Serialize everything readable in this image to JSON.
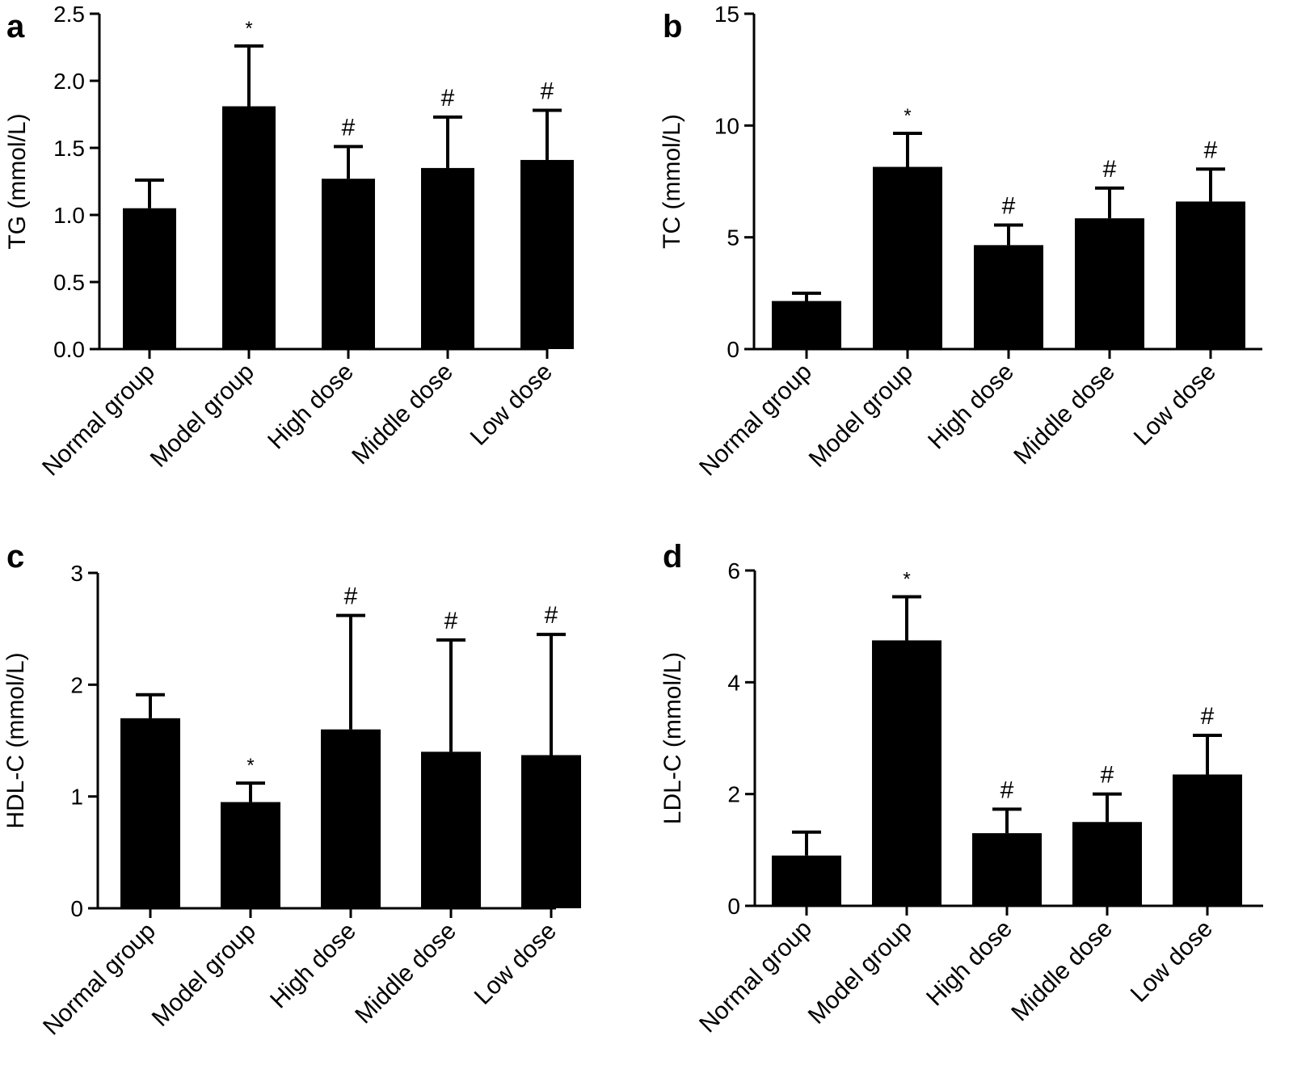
{
  "chart_data": [
    {
      "type": "bar",
      "panel": "a",
      "title": "",
      "xlabel": "",
      "ylabel": "TG (mmol/L)",
      "categories": [
        "Normal group",
        "Model group",
        "High dose",
        "Middle dose",
        "Low dose"
      ],
      "values": [
        1.05,
        1.81,
        1.27,
        1.35,
        1.41
      ],
      "errors": [
        0.21,
        0.45,
        0.24,
        0.38,
        0.37
      ],
      "annotations": [
        "",
        "*",
        "#",
        "#",
        "#"
      ],
      "ylim": [
        0,
        2.5
      ],
      "yticks": [
        "0.0",
        "0.5",
        "1.0",
        "1.5",
        "2.0",
        "2.5"
      ],
      "ytick_values": [
        0,
        0.5,
        1.0,
        1.5,
        2.0,
        2.5
      ],
      "grid": false
    },
    {
      "type": "bar",
      "panel": "b",
      "title": "",
      "xlabel": "",
      "ylabel": "TC (mmol/L)",
      "categories": [
        "Normal group",
        "Model group",
        "High dose",
        "Middle dose",
        "Low dose"
      ],
      "values": [
        2.15,
        8.15,
        4.65,
        5.85,
        6.6
      ],
      "errors": [
        0.35,
        1.5,
        0.9,
        1.35,
        1.45
      ],
      "annotations": [
        "",
        "*",
        "#",
        "#",
        "#"
      ],
      "ylim": [
        0,
        15
      ],
      "yticks": [
        "0",
        "5",
        "10",
        "15"
      ],
      "ytick_values": [
        0,
        5,
        10,
        15
      ],
      "grid": false
    },
    {
      "type": "bar",
      "panel": "c",
      "title": "",
      "xlabel": "",
      "ylabel": "HDL-C (mmol/L)",
      "categories": [
        "Normal group",
        "Model group",
        "High dose",
        "Middle dose",
        "Low dose"
      ],
      "values": [
        1.7,
        0.95,
        1.6,
        1.4,
        1.37
      ],
      "errors": [
        0.21,
        0.17,
        1.02,
        1.0,
        1.08
      ],
      "annotations": [
        "",
        "*",
        "#",
        "#",
        "#"
      ],
      "ylim": [
        0,
        3
      ],
      "yticks": [
        "0",
        "1",
        "2",
        "3"
      ],
      "ytick_values": [
        0,
        1,
        2,
        3
      ],
      "grid": false
    },
    {
      "type": "bar",
      "panel": "d",
      "title": "",
      "xlabel": "",
      "ylabel": "LDL-C (mmol/L)",
      "categories": [
        "Normal group",
        "Model group",
        "High dose",
        "Middle dose",
        "Low dose"
      ],
      "values": [
        0.9,
        4.75,
        1.3,
        1.5,
        2.35
      ],
      "errors": [
        0.42,
        0.78,
        0.43,
        0.5,
        0.7
      ],
      "annotations": [
        "",
        "*",
        "#",
        "#",
        "#"
      ],
      "ylim": [
        0,
        6
      ],
      "yticks": [
        "0",
        "2",
        "4",
        "6"
      ],
      "ytick_values": [
        0,
        2,
        4,
        6
      ],
      "grid": false
    }
  ],
  "colors": {
    "bar": "#000000",
    "axis": "#000000",
    "background": "#ffffff"
  }
}
